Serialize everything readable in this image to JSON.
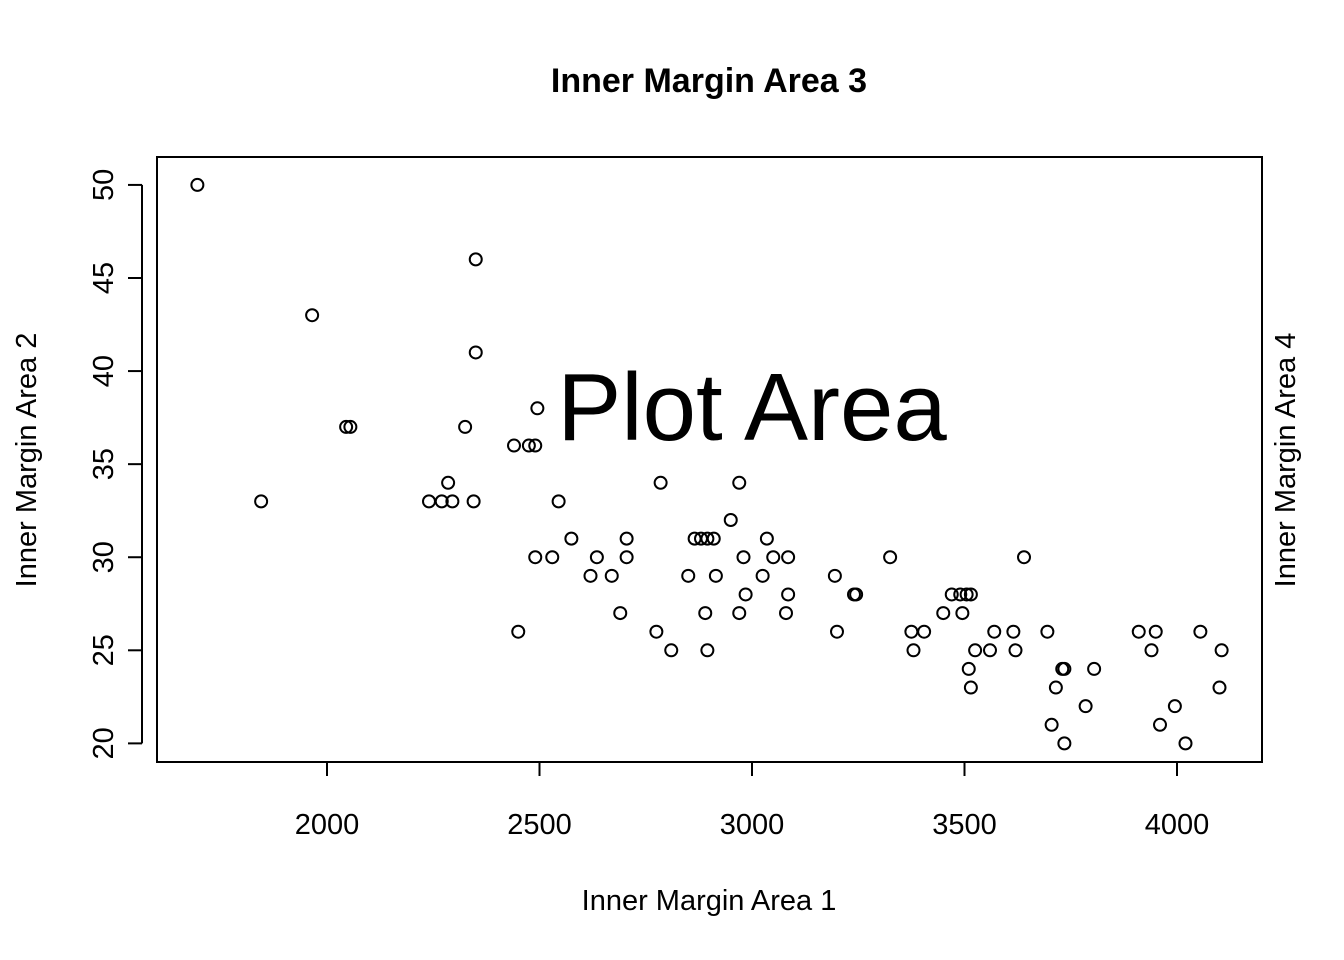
{
  "chart_data": {
    "type": "scatter",
    "title": "Inner Margin Area 3",
    "xlabel": "Inner Margin Area 1",
    "ylabel": "Inner Margin Area 2",
    "right_label": "Inner Margin Area 4",
    "annotation": "Plot Area",
    "xlim": [
      1600,
      4200
    ],
    "ylim": [
      19,
      51.5
    ],
    "x_ticks": [
      2000,
      2500,
      3000,
      3500,
      4000
    ],
    "y_ticks": [
      20,
      25,
      30,
      35,
      40,
      45,
      50
    ],
    "grid": false,
    "marker": "open-circle",
    "color": "#000000",
    "points": [
      [
        1695,
        50
      ],
      [
        1845,
        33
      ],
      [
        1965,
        43
      ],
      [
        2045,
        37
      ],
      [
        2055,
        37
      ],
      [
        2240,
        33
      ],
      [
        2270,
        33
      ],
      [
        2285,
        34
      ],
      [
        2295,
        33
      ],
      [
        2325,
        37
      ],
      [
        2345,
        33
      ],
      [
        2350,
        41
      ],
      [
        2350,
        46
      ],
      [
        2440,
        36
      ],
      [
        2450,
        26
      ],
      [
        2475,
        36
      ],
      [
        2490,
        30
      ],
      [
        2490,
        36
      ],
      [
        2495,
        38
      ],
      [
        2530,
        30
      ],
      [
        2545,
        33
      ],
      [
        2575,
        31
      ],
      [
        2620,
        29
      ],
      [
        2635,
        30
      ],
      [
        2670,
        29
      ],
      [
        2690,
        27
      ],
      [
        2705,
        31
      ],
      [
        2705,
        30
      ],
      [
        2775,
        26
      ],
      [
        2785,
        34
      ],
      [
        2810,
        25
      ],
      [
        2850,
        29
      ],
      [
        2865,
        31
      ],
      [
        2880,
        31
      ],
      [
        2890,
        27
      ],
      [
        2895,
        31
      ],
      [
        2895,
        25
      ],
      [
        2910,
        31
      ],
      [
        2915,
        29
      ],
      [
        2950,
        32
      ],
      [
        2970,
        27
      ],
      [
        2970,
        34
      ],
      [
        2980,
        30
      ],
      [
        2985,
        28
      ],
      [
        3025,
        29
      ],
      [
        3035,
        31
      ],
      [
        3050,
        30
      ],
      [
        3080,
        27
      ],
      [
        3085,
        28
      ],
      [
        3085,
        30
      ],
      [
        3195,
        29
      ],
      [
        3200,
        26
      ],
      [
        3240,
        28
      ],
      [
        3245,
        28
      ],
      [
        3325,
        30
      ],
      [
        3375,
        26
      ],
      [
        3380,
        25
      ],
      [
        3405,
        26
      ],
      [
        3450,
        27
      ],
      [
        3470,
        28
      ],
      [
        3490,
        28
      ],
      [
        3495,
        27
      ],
      [
        3505,
        28
      ],
      [
        3510,
        24
      ],
      [
        3515,
        28
      ],
      [
        3515,
        23
      ],
      [
        3525,
        25
      ],
      [
        3560,
        25
      ],
      [
        3570,
        26
      ],
      [
        3615,
        26
      ],
      [
        3620,
        25
      ],
      [
        3640,
        30
      ],
      [
        3695,
        26
      ],
      [
        3705,
        21
      ],
      [
        3715,
        23
      ],
      [
        3730,
        24
      ],
      [
        3735,
        24
      ],
      [
        3735,
        20
      ],
      [
        3785,
        22
      ],
      [
        3805,
        24
      ],
      [
        3910,
        26
      ],
      [
        3940,
        25
      ],
      [
        3950,
        26
      ],
      [
        3960,
        21
      ],
      [
        3995,
        22
      ],
      [
        4020,
        20
      ],
      [
        4055,
        26
      ],
      [
        4100,
        23
      ],
      [
        4105,
        25
      ]
    ]
  }
}
